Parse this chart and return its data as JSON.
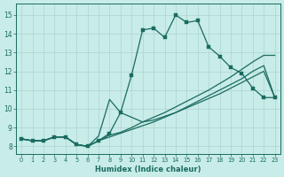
{
  "xlabel": "Humidex (Indice chaleur)",
  "background_color": "#c8ece8",
  "grid_color": "#aed4d0",
  "line_color": "#1a6b60",
  "xlim": [
    -0.5,
    23.5
  ],
  "ylim": [
    7.6,
    15.6
  ],
  "xticks": [
    0,
    1,
    2,
    3,
    4,
    5,
    6,
    7,
    8,
    9,
    10,
    11,
    12,
    13,
    14,
    15,
    16,
    17,
    18,
    19,
    20,
    21,
    22,
    23
  ],
  "yticks": [
    8,
    9,
    10,
    11,
    12,
    13,
    14,
    15
  ],
  "curve1_x": [
    0,
    1,
    2,
    3,
    4,
    5,
    6,
    7,
    8,
    9,
    10,
    11,
    12,
    13,
    14,
    15,
    16,
    17,
    18,
    19,
    20,
    21,
    22,
    23
  ],
  "curve1_y": [
    8.4,
    8.3,
    8.3,
    8.5,
    8.5,
    8.1,
    8.0,
    8.3,
    8.7,
    9.8,
    11.8,
    14.2,
    14.3,
    13.8,
    15.0,
    14.6,
    14.7,
    13.3,
    12.8,
    12.2,
    11.9,
    11.1,
    10.6,
    10.6
  ],
  "curve2_x": [
    0,
    1,
    2,
    3,
    4,
    5,
    6,
    7,
    8,
    9,
    10,
    11,
    12,
    13,
    14,
    15,
    16,
    17,
    18,
    19,
    20,
    21,
    22,
    23
  ],
  "curve2_y": [
    8.4,
    8.3,
    8.3,
    8.5,
    8.5,
    8.1,
    8.0,
    8.3,
    8.6,
    8.75,
    9.0,
    9.3,
    9.55,
    9.8,
    10.1,
    10.4,
    10.7,
    11.0,
    11.35,
    11.7,
    12.1,
    12.5,
    12.85,
    12.85
  ],
  "curve3_x": [
    0,
    1,
    2,
    3,
    4,
    5,
    6,
    7,
    8,
    9,
    10,
    11,
    12,
    13,
    14,
    15,
    16,
    17,
    18,
    19,
    20,
    21,
    22,
    23
  ],
  "curve3_y": [
    8.4,
    8.3,
    8.3,
    8.5,
    8.5,
    8.1,
    8.0,
    8.55,
    10.5,
    9.8,
    9.55,
    9.3,
    9.4,
    9.6,
    9.8,
    10.1,
    10.4,
    10.7,
    11.0,
    11.3,
    11.6,
    12.0,
    12.3,
    10.6
  ],
  "curve4_x": [
    0,
    1,
    2,
    3,
    4,
    5,
    6,
    7,
    8,
    9,
    10,
    11,
    12,
    13,
    14,
    15,
    16,
    17,
    18,
    19,
    20,
    21,
    22,
    23
  ],
  "curve4_y": [
    8.4,
    8.3,
    8.3,
    8.5,
    8.5,
    8.1,
    8.0,
    8.3,
    8.5,
    8.7,
    8.9,
    9.1,
    9.3,
    9.55,
    9.8,
    10.05,
    10.3,
    10.55,
    10.8,
    11.1,
    11.4,
    11.7,
    12.0,
    10.6
  ]
}
